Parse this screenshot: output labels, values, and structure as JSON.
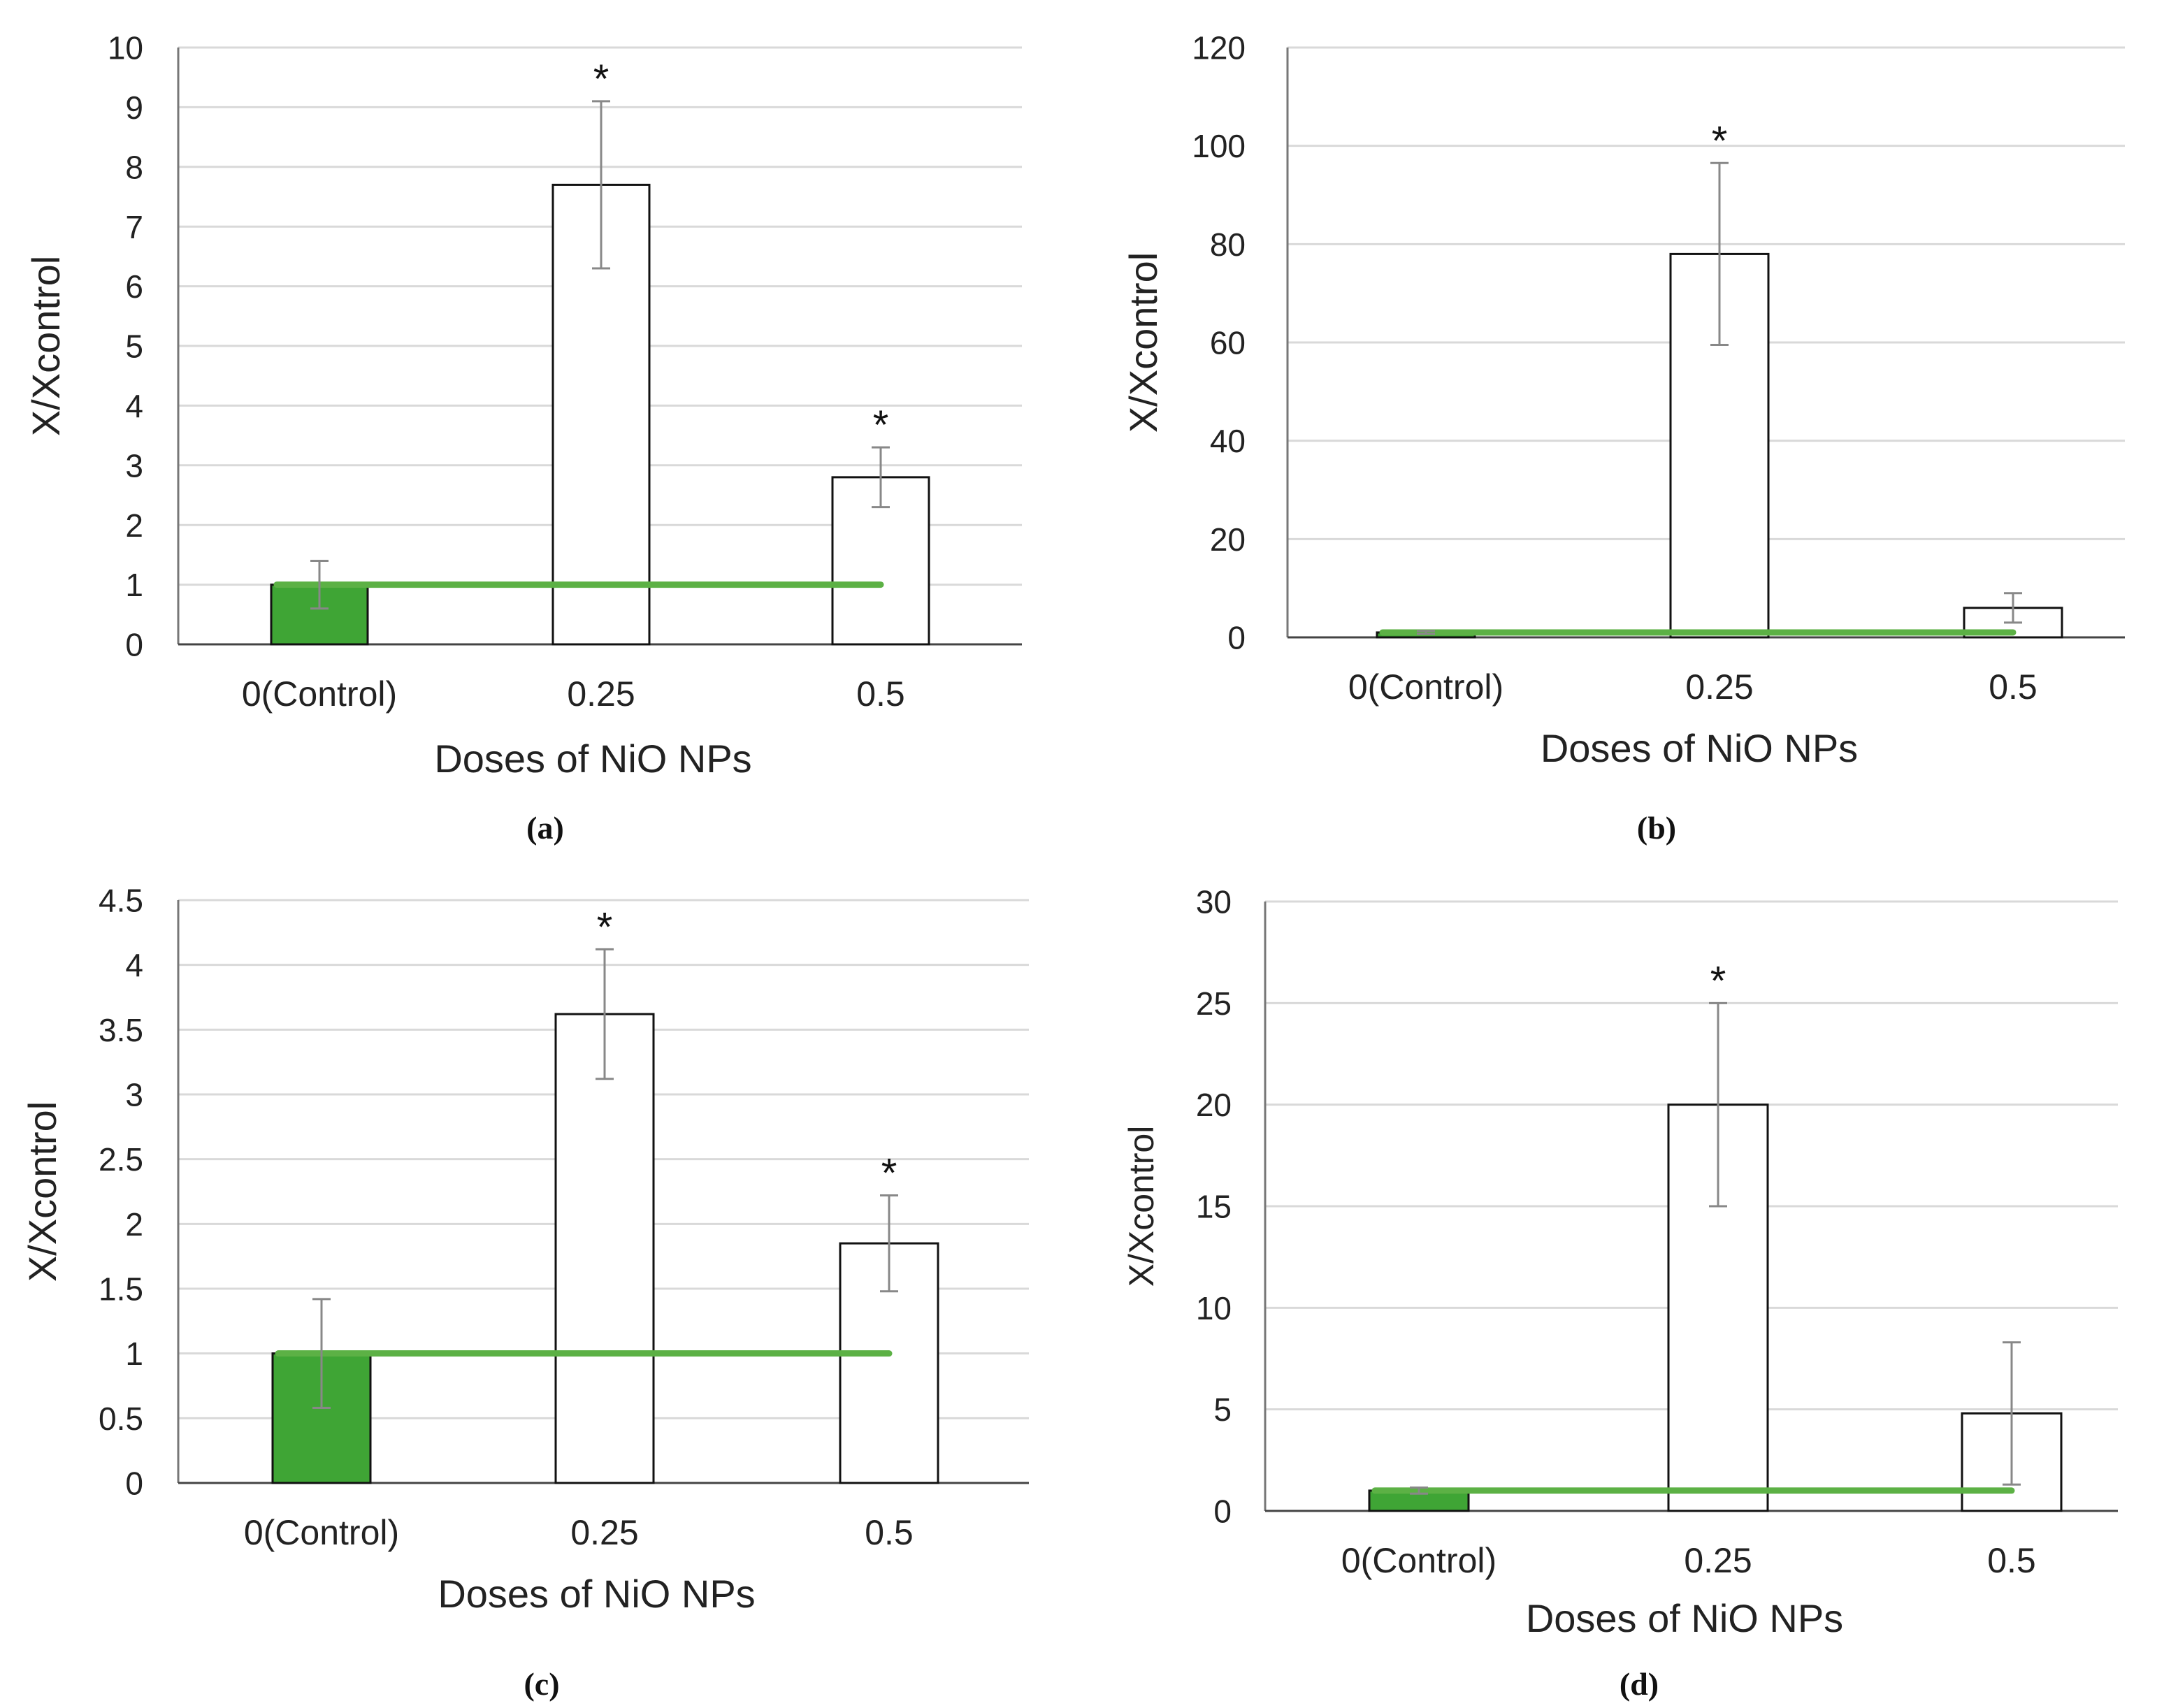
{
  "colors": {
    "control_bar": "#3fa535",
    "reference_line": "#5cb145",
    "bar_fill": "#ffffff",
    "bar_stroke": "#111111",
    "grid": "#d9d9d9",
    "error_bar": "#888888"
  },
  "chart_data": [
    {
      "type": "bar",
      "panel_label": "(a)",
      "categories": [
        "0(Control)",
        "0.25",
        "0.5"
      ],
      "values": [
        1.0,
        7.7,
        2.8
      ],
      "errors": [
        0.4,
        1.4,
        0.5
      ],
      "significance": [
        "",
        "*",
        "*"
      ],
      "reference_line": 1.0,
      "xlabel": "Doses of NiO NPs",
      "ylabel": "X/Xcontrol",
      "ylim": [
        0,
        10
      ],
      "yticks": [
        "0",
        "1",
        "2",
        "3",
        "4",
        "5",
        "6",
        "7",
        "8",
        "9",
        "10"
      ],
      "grid": true
    },
    {
      "type": "bar",
      "panel_label": "(b)",
      "categories": [
        "0(Control)",
        "0.25",
        "0.5"
      ],
      "values": [
        1.0,
        78.0,
        6.0
      ],
      "errors": [
        0.3,
        18.5,
        3.0
      ],
      "significance": [
        "",
        "*",
        ""
      ],
      "reference_line": 1.0,
      "xlabel": "Doses of NiO NPs",
      "ylabel": "X/Xcontrol",
      "ylim": [
        0,
        120
      ],
      "yticks": [
        "0",
        "20",
        "40",
        "60",
        "80",
        "100",
        "120"
      ],
      "grid": true
    },
    {
      "type": "bar",
      "panel_label": "(c)",
      "categories": [
        "0(Control)",
        "0.25",
        "0.5"
      ],
      "values": [
        1.0,
        3.62,
        1.85
      ],
      "errors": [
        0.42,
        0.5,
        0.37
      ],
      "significance": [
        "",
        "*",
        "*"
      ],
      "reference_line": 1.0,
      "xlabel": "Doses of NiO NPs",
      "ylabel": "X/Xcontrol",
      "ylim": [
        0,
        4.5
      ],
      "yticks": [
        "0",
        "0.5",
        "1",
        "1.5",
        "2",
        "2.5",
        "3",
        "3.5",
        "4",
        "4.5"
      ],
      "grid": true
    },
    {
      "type": "bar",
      "panel_label": "(d)",
      "categories": [
        "0(Control)",
        "0.25",
        "0.5"
      ],
      "values": [
        1.0,
        20.0,
        4.8
      ],
      "errors": [
        0.15,
        5.0,
        3.5
      ],
      "significance": [
        "",
        "*",
        ""
      ],
      "reference_line": 1.0,
      "xlabel": "Doses of NiO NPs",
      "ylabel": "X/Xcontrol",
      "ylim": [
        0,
        30
      ],
      "yticks": [
        "0",
        "5",
        "10",
        "15",
        "20",
        "25",
        "30"
      ],
      "grid": true
    }
  ]
}
